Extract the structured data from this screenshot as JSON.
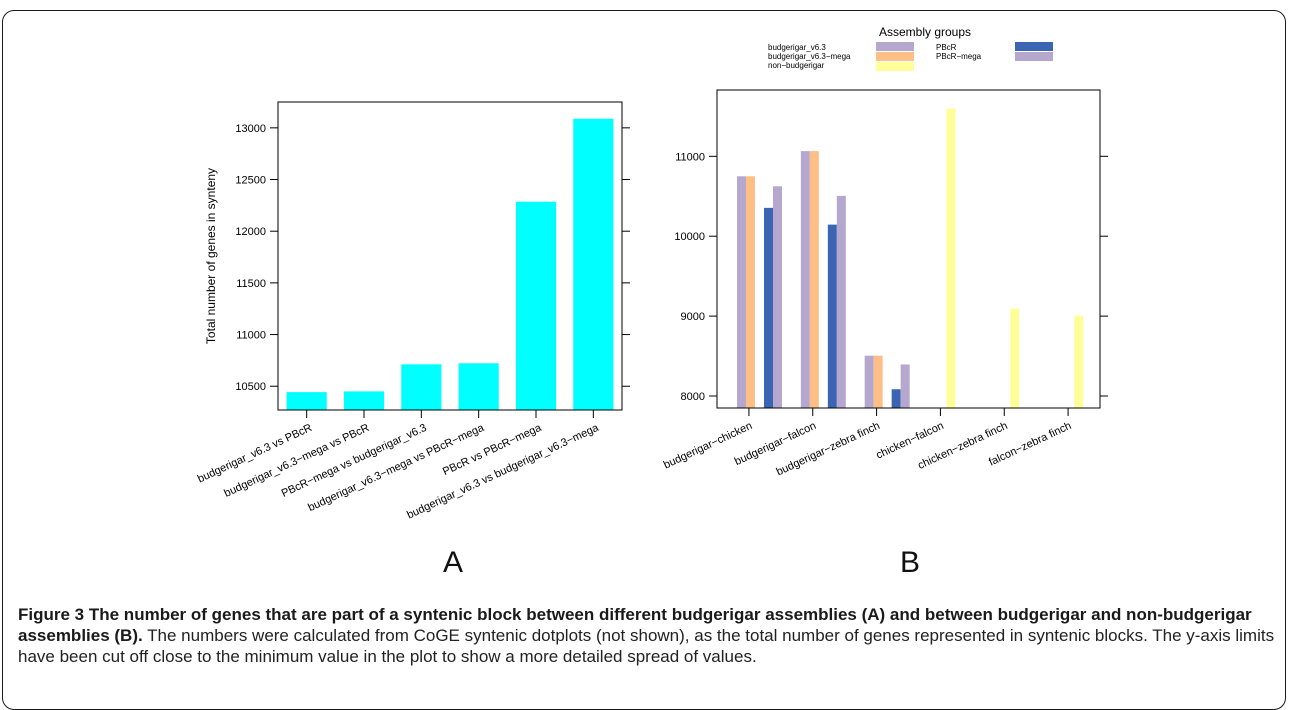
{
  "figure": {
    "panel_a_letter": "A",
    "panel_b_letter": "B",
    "caption": {
      "label": "Figure 3",
      "title": "The number of genes that are part of a syntenic block between different budgerigar assemblies (A) and between budgerigar and non-budgerigar assemblies (B).",
      "body": "The numbers were calculated from CoGE syntenic dotplots (not shown), as the total number of genes represented in syntenic blocks. The y-axis limits have been cut off close to the minimum value in the plot to show a more detailed spread of values."
    }
  },
  "colors": {
    "cyan": "#00ffff",
    "budgerigar_v6_3": "#b6a7cf",
    "budgerigar_v6_3_mega": "#fdbf85",
    "non_budgerigar": "#ffff99",
    "pbcr": "#3a65b3",
    "pbcr_mega": "#b6a7cf"
  },
  "chart_data": [
    {
      "type": "bar",
      "panel": "A",
      "ylabel": "Total number of genes in synteny",
      "xlabel": "",
      "categories": [
        "budgerigar_v6.3 vs PBcR",
        "budgerigar_v6.3−mega vs PBcR",
        "PBcR−mega vs budgerigar_v6.3",
        "budgerigar_v6.3−mega vs PBcR−mega",
        "PBcR vs PBcR−mega",
        "budgerigar_v6.3 vs budgerigar_v6.3−mega"
      ],
      "values": [
        10443,
        10450,
        10712,
        10722,
        12285,
        13088
      ],
      "ylim": [
        10270,
        13250
      ],
      "yticks": [
        10500,
        11000,
        11500,
        12000,
        12500,
        13000
      ],
      "grid": false
    },
    {
      "type": "bar",
      "panel": "B",
      "ylabel": "",
      "xlabel": "",
      "legend": {
        "title": "Assembly groups",
        "placement": "top",
        "entries": [
          {
            "name": "budgerigar_v6.3",
            "color_key": "budgerigar_v6_3"
          },
          {
            "name": "budgerigar_v6.3−mega",
            "color_key": "budgerigar_v6_3_mega"
          },
          {
            "name": "non−budgerigar",
            "color_key": "non_budgerigar"
          },
          {
            "name": "PBcR",
            "color_key": "pbcr"
          },
          {
            "name": "PBcR−mega",
            "color_key": "pbcr_mega"
          }
        ]
      },
      "categories": [
        "budgerigar−chicken",
        "budgerigar−falcon",
        "budgerigar−zebra finch",
        "chicken−falcon",
        "chicken−zebra finch",
        "falcon−zebra finch"
      ],
      "series": [
        {
          "name": "budgerigar_v6.3",
          "color_key": "budgerigar_v6_3",
          "values": [
            10750,
            11065,
            8505,
            null,
            null,
            null
          ]
        },
        {
          "name": "budgerigar_v6.3−mega",
          "color_key": "budgerigar_v6_3_mega",
          "values": [
            10750,
            11065,
            8505,
            null,
            null,
            null
          ]
        },
        {
          "name": "non−budgerigar",
          "color_key": "non_budgerigar",
          "values": [
            null,
            null,
            null,
            11600,
            9095,
            9005
          ]
        },
        {
          "name": "PBcR",
          "color_key": "pbcr",
          "values": [
            10355,
            10145,
            8085,
            null,
            null,
            null
          ]
        },
        {
          "name": "PBcR−mega",
          "color_key": "pbcr_mega",
          "values": [
            10625,
            10505,
            8395,
            null,
            null,
            null
          ]
        }
      ],
      "ylim": [
        7850,
        11830
      ],
      "yticks": [
        8000,
        9000,
        10000,
        11000
      ],
      "grid": false
    }
  ]
}
